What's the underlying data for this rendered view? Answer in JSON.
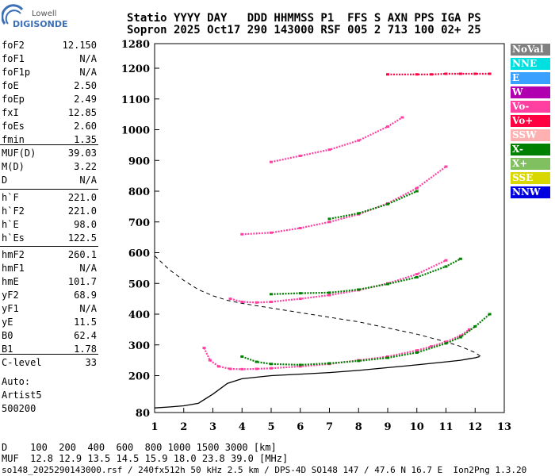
{
  "logo": {
    "top": "Lowell",
    "bottom": "DIGISONDE"
  },
  "header": {
    "line1": "Statio YYYY DAY   DDD HHMMSS P1  FFS S AXN PPS IGA PS",
    "line2": "Sopron 2025 Oct17 290 143000 RSF 005 2 713 100 02+ 25"
  },
  "params1": [
    {
      "name": "foF2",
      "value": "12.150"
    },
    {
      "name": "foF1",
      "value": "N/A"
    },
    {
      "name": "foF1p",
      "value": "N/A"
    },
    {
      "name": "foE",
      "value": "2.50"
    },
    {
      "name": "foEp",
      "value": "2.49"
    },
    {
      "name": "fxI",
      "value": "12.85"
    },
    {
      "name": "foEs",
      "value": "2.60"
    },
    {
      "name": "fmin",
      "value": "1.35"
    }
  ],
  "params2": [
    {
      "name": "MUF(D)",
      "value": "39.03"
    },
    {
      "name": "M(D)",
      "value": "3.22"
    },
    {
      "name": "D",
      "value": "N/A"
    }
  ],
  "params3": [
    {
      "name": "h`F",
      "value": "221.0"
    },
    {
      "name": "h`F2",
      "value": "221.0"
    },
    {
      "name": "h`E",
      "value": "98.0"
    },
    {
      "name": "h`Es",
      "value": "122.5"
    }
  ],
  "params4": [
    {
      "name": "hmF2",
      "value": "260.1"
    },
    {
      "name": "hmF1",
      "value": "N/A"
    },
    {
      "name": "hmE",
      "value": "101.7"
    },
    {
      "name": "yF2",
      "value": "68.9"
    },
    {
      "name": "yF1",
      "value": "N/A"
    },
    {
      "name": "yE",
      "value": "11.5"
    },
    {
      "name": "B0",
      "value": "62.4"
    },
    {
      "name": "B1",
      "value": "1.78"
    }
  ],
  "params5": [
    {
      "name": "C-level",
      "value": "33"
    }
  ],
  "footer_left": [
    "Auto:",
    "Artist5",
    "500200"
  ],
  "legend": [
    {
      "label": "NoVal",
      "color": "#808080"
    },
    {
      "label": "NNE",
      "color": "#00e0e0"
    },
    {
      "label": "E",
      "color": "#3aa0ff"
    },
    {
      "label": "W",
      "color": "#b000b0"
    },
    {
      "label": "Vo-",
      "color": "#ff40a0"
    },
    {
      "label": "Vo+",
      "color": "#ff0040"
    },
    {
      "label": "SSW",
      "color": "#ffb0b0"
    },
    {
      "label": "X-",
      "color": "#008000"
    },
    {
      "label": "X+",
      "color": "#80c060"
    },
    {
      "label": "SSE",
      "color": "#d8d800"
    },
    {
      "label": "NNW",
      "color": "#0000e0"
    }
  ],
  "bottom": {
    "line1": "D    100  200  400  600  800 1000 1500 3000 [km]",
    "line2": "MUF  12.8 12.9 13.5 14.5 15.9 18.0 23.8 39.0 [MHz]",
    "line3": "so148_2025290143000.rsf / 240fx512h 50 kHz 2.5 km / DPS-4D SO148 147 / 47.6 N 16.7 E  Ion2Png 1.3.20"
  },
  "chart_data": {
    "type": "scatter",
    "xlim": [
      1,
      13
    ],
    "ylim": [
      80,
      1280
    ],
    "xticks": [
      1,
      2,
      3,
      4,
      5,
      6,
      7,
      8,
      9,
      10,
      11,
      12,
      13
    ],
    "yticks": [
      80,
      200,
      300,
      400,
      500,
      600,
      700,
      800,
      900,
      1000,
      1100,
      1200,
      1280
    ],
    "grid": false,
    "legend_position": "right",
    "traces": [
      {
        "series": "Vo-",
        "x": [
          2.7,
          2.9,
          3.2,
          3.6,
          4.0,
          4.5,
          5.0,
          6.0,
          7.0,
          8.0,
          9.0,
          10.0,
          10.5,
          11.0,
          11.5,
          11.8
        ],
        "y": [
          290,
          250,
          230,
          222,
          221,
          222,
          224,
          230,
          238,
          250,
          262,
          282,
          295,
          310,
          330,
          350
        ]
      },
      {
        "series": "X-",
        "x": [
          4.0,
          4.5,
          5.0,
          6.0,
          7.0,
          8.0,
          9.0,
          10.0,
          11.0,
          11.5,
          12.0,
          12.5
        ],
        "y": [
          262,
          245,
          238,
          235,
          240,
          248,
          258,
          275,
          305,
          325,
          360,
          400
        ]
      },
      {
        "series": "Vo-",
        "x": [
          3.6,
          4.0,
          4.5,
          5.0,
          6.0,
          7.0,
          8.0,
          9.0,
          10.0,
          11.0
        ],
        "y": [
          450,
          440,
          438,
          440,
          450,
          462,
          478,
          500,
          530,
          575
        ]
      },
      {
        "series": "X-",
        "x": [
          5.0,
          6.0,
          7.0,
          8.0,
          9.0,
          10.0,
          11.0,
          11.5
        ],
        "y": [
          465,
          468,
          470,
          480,
          498,
          520,
          555,
          580
        ]
      },
      {
        "series": "Vo-",
        "x": [
          4.0,
          5.0,
          6.0,
          7.0,
          8.0,
          9.0,
          10.0,
          11.0
        ],
        "y": [
          660,
          665,
          680,
          700,
          725,
          760,
          810,
          880
        ]
      },
      {
        "series": "X-",
        "x": [
          7.0,
          8.0,
          9.0,
          10.0
        ],
        "y": [
          710,
          728,
          758,
          800
        ]
      },
      {
        "series": "Vo-",
        "x": [
          5.0,
          6.0,
          7.0,
          8.0,
          9.0,
          9.5
        ],
        "y": [
          895,
          915,
          935,
          965,
          1010,
          1040
        ]
      },
      {
        "series": "Vo+",
        "x": [
          9.0,
          10.0,
          10.5,
          11.0,
          11.5,
          12.0,
          12.5
        ],
        "y": [
          1180,
          1180,
          1180,
          1182,
          1182,
          1182,
          1182
        ]
      }
    ],
    "profile": {
      "x": [
        1.0,
        1.5,
        2.0,
        2.5,
        3.0,
        3.5,
        4.0,
        5.0,
        6.0,
        7.0,
        8.0,
        9.0,
        10.0,
        11.0,
        11.5,
        11.8,
        12.0,
        12.15
      ],
      "y": [
        95,
        98,
        102,
        110,
        140,
        175,
        190,
        200,
        205,
        210,
        217,
        226,
        235,
        245,
        250,
        255,
        258,
        262
      ]
    },
    "muf_curve": {
      "x": [
        1.0,
        1.5,
        2.0,
        2.5,
        3.0,
        3.5,
        4.0,
        5.0,
        6.0,
        7.0,
        8.0,
        9.0,
        10.0,
        11.0,
        11.5,
        12.0,
        12.2
      ],
      "y": [
        590,
        545,
        510,
        480,
        460,
        445,
        435,
        420,
        405,
        390,
        375,
        355,
        335,
        310,
        295,
        275,
        262
      ]
    }
  }
}
